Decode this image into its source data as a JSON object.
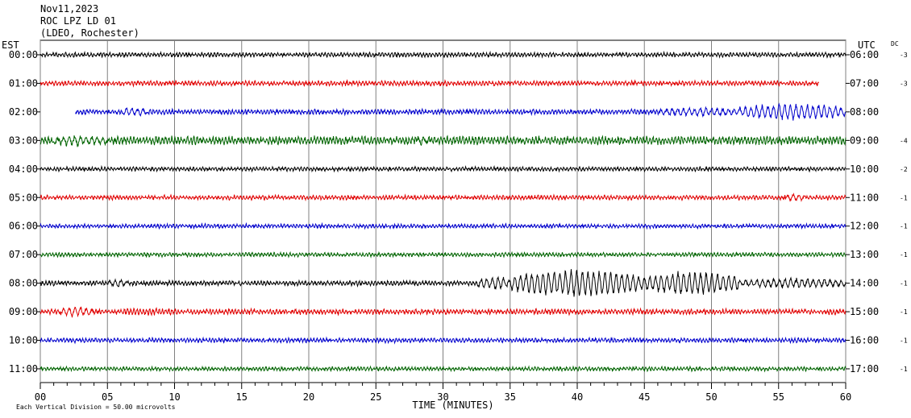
{
  "header": {
    "date": "Nov11,2023",
    "station": "ROC LPZ LD 01",
    "network": "(LDEO, Rochester)"
  },
  "chart_data": {
    "type": "line",
    "title": "",
    "xlabel": "TIME (MINUTES)",
    "left_axis_label": "EST",
    "right_axis_label": "UTC",
    "dc_label": "DC",
    "xlim": [
      0,
      60
    ],
    "x_ticks": [
      "00",
      "05",
      "10",
      "15",
      "20",
      "25",
      "30",
      "35",
      "40",
      "45",
      "50",
      "55",
      "60"
    ],
    "grid": "vertical every 5 minutes",
    "footnote": "Each Vertical Division =   50.00 microvolts",
    "trace_colors": [
      "#000000",
      "#e00000",
      "#0000cc",
      "#006400"
    ],
    "rows": [
      {
        "est": "00:00",
        "utc": "06:00",
        "dc": "-3",
        "start": 0,
        "end": 60,
        "amp": 2.2,
        "events": []
      },
      {
        "est": "01:00",
        "utc": "07:00",
        "dc": "-3",
        "start": 0,
        "end": 58,
        "amp": 2.4,
        "events": []
      },
      {
        "est": "02:00",
        "utc": "08:00",
        "dc": "",
        "start": 2.6,
        "end": 60,
        "amp": 2.5,
        "events": [
          [
            6,
            8,
            5
          ],
          [
            46,
            52,
            5
          ],
          [
            52,
            60,
            10
          ]
        ]
      },
      {
        "est": "03:00",
        "utc": "09:00",
        "dc": "-4",
        "start": 0,
        "end": 60,
        "amp": 4.0,
        "events": [
          [
            1,
            5,
            6
          ],
          [
            28,
            29,
            5
          ]
        ]
      },
      {
        "est": "04:00",
        "utc": "10:00",
        "dc": "-2",
        "start": 0,
        "end": 60,
        "amp": 2.0,
        "events": []
      },
      {
        "est": "05:00",
        "utc": "11:00",
        "dc": "-1",
        "start": 0,
        "end": 60,
        "amp": 2.2,
        "events": [
          [
            55.5,
            57,
            5
          ]
        ]
      },
      {
        "est": "06:00",
        "utc": "12:00",
        "dc": "-1",
        "start": 0,
        "end": 60,
        "amp": 2.0,
        "events": []
      },
      {
        "est": "07:00",
        "utc": "13:00",
        "dc": "-1",
        "start": 0,
        "end": 60,
        "amp": 2.0,
        "events": []
      },
      {
        "est": "08:00",
        "utc": "14:00",
        "dc": "-1",
        "start": 0,
        "end": 60,
        "amp": 2.4,
        "events": [
          [
            5,
            6.5,
            5
          ],
          [
            32.5,
            35,
            8
          ],
          [
            35,
            45,
            17
          ],
          [
            45,
            52,
            15
          ],
          [
            52,
            60,
            6
          ]
        ]
      },
      {
        "est": "09:00",
        "utc": "15:00",
        "dc": "-1",
        "start": 0,
        "end": 60,
        "amp": 2.6,
        "events": [
          [
            1.5,
            4,
            6
          ],
          [
            5,
            11,
            4
          ]
        ]
      },
      {
        "est": "10:00",
        "utc": "16:00",
        "dc": "-1",
        "start": 0,
        "end": 60,
        "amp": 2.2,
        "events": []
      },
      {
        "est": "11:00",
        "utc": "17:00",
        "dc": "-1",
        "start": 0,
        "end": 60,
        "amp": 2.0,
        "events": []
      }
    ]
  }
}
